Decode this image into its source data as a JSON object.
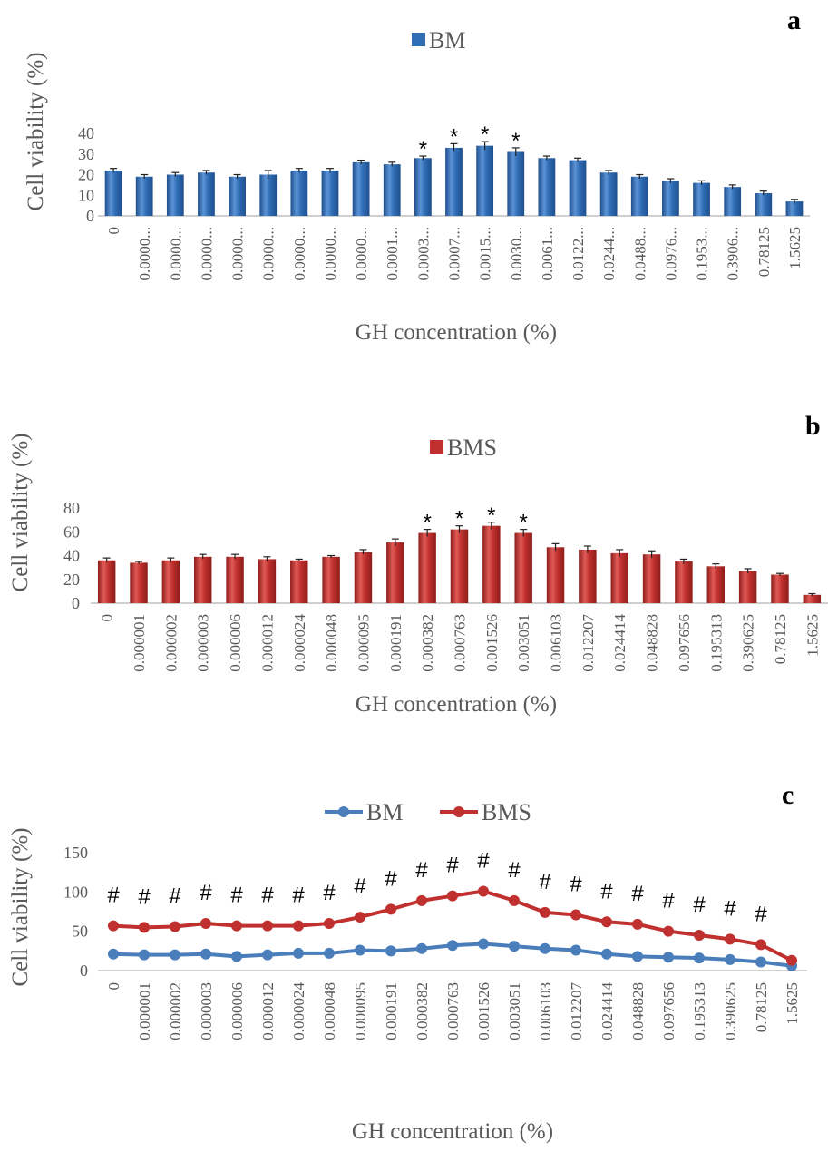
{
  "chart_data": [
    {
      "panel": "a",
      "type": "bar",
      "xlabel": "GH concentration  (%)",
      "ylabel": "Cell  viability   (%)",
      "ylim": [
        0,
        40
      ],
      "yticks": [
        0,
        10,
        20,
        30,
        40
      ],
      "legend": {
        "position": "top-center"
      },
      "color": "#2f6db5",
      "categories": [
        "0",
        "0.0000...",
        "0.0000...",
        "0.0000...",
        "0.0000...",
        "0.0000...",
        "0.0000...",
        "0.0000...",
        "0.0000...",
        "0.0001...",
        "0.0003...",
        "0.0007...",
        "0.0015...",
        "0.0030...",
        "0.0061...",
        "0.0122...",
        "0.0244...",
        "0.0488...",
        "0.0976...",
        "0.1953...",
        "0.3906...",
        "0.78125",
        "1.5625"
      ],
      "series": [
        {
          "name": "BM",
          "values": [
            22,
            19,
            20,
            21,
            19,
            20,
            22,
            22,
            26,
            25,
            28,
            33,
            34,
            31,
            28,
            27,
            21,
            19,
            17,
            16,
            14,
            11,
            7
          ],
          "errors": [
            1,
            1,
            1,
            1,
            1,
            2,
            1,
            1,
            1,
            1,
            1,
            2,
            2,
            2,
            1,
            1,
            1,
            1,
            1,
            1,
            1,
            1,
            1
          ]
        }
      ],
      "annotations": {
        "symbol": "*",
        "categories": [
          "0.0003...",
          "0.0007...",
          "0.0015...",
          "0.0030..."
        ]
      }
    },
    {
      "panel": "b",
      "type": "bar",
      "xlabel": "GH concentration  (%)",
      "ylabel": "Cell  viability   (%)",
      "ylim": [
        0,
        80
      ],
      "yticks": [
        0,
        20,
        40,
        60,
        80
      ],
      "legend": {
        "position": "top-center"
      },
      "color": "#c0302e",
      "categories": [
        "0",
        "0.000001",
        "0.000002",
        "0.000003",
        "0.000006",
        "0.000012",
        "0.000024",
        "0.000048",
        "0.000095",
        "0.000191",
        "0.000382",
        "0.000763",
        "0.001526",
        "0.003051",
        "0.006103",
        "0.012207",
        "0.024414",
        "0.048828",
        "0.097656",
        "0.195313",
        "0.390625",
        "0.78125",
        "1.5625"
      ],
      "series": [
        {
          "name": "BMS",
          "values": [
            36,
            34,
            36,
            39,
            39,
            37,
            36,
            39,
            43,
            51,
            59,
            62,
            65,
            59,
            47,
            45,
            42,
            41,
            35,
            31,
            27,
            24,
            7
          ],
          "errors": [
            2,
            1,
            2,
            2,
            2,
            2,
            1,
            1,
            2,
            3,
            3,
            3,
            3,
            3,
            3,
            3,
            3,
            3,
            2,
            2,
            2,
            1,
            1
          ]
        }
      ],
      "annotations": {
        "symbol": "*",
        "categories": [
          "0.000382",
          "0.000763",
          "0.001526",
          "0.003051"
        ]
      }
    },
    {
      "panel": "c",
      "type": "line",
      "xlabel": "GH concentration  (%)",
      "ylabel": "Cell  viability   (%)",
      "ylim": [
        0,
        150
      ],
      "yticks": [
        0,
        50,
        100,
        150
      ],
      "legend": {
        "position": "top-center"
      },
      "categories": [
        "0",
        "0.000001",
        "0.000002",
        "0.000003",
        "0.000006",
        "0.000012",
        "0.000024",
        "0.000048",
        "0.000095",
        "0.000191",
        "0.000382",
        "0.000763",
        "0.001526",
        "0.003051",
        "0.006103",
        "0.012207",
        "0.024414",
        "0.048828",
        "0.097656",
        "0.195313",
        "0.390625",
        "0.78125",
        "1.5625"
      ],
      "series": [
        {
          "name": "BM",
          "color": "#4a7ebb",
          "values": [
            21,
            20,
            20,
            21,
            18,
            20,
            22,
            22,
            26,
            25,
            28,
            32,
            34,
            31,
            28,
            26,
            21,
            18,
            17,
            16,
            14,
            11,
            6
          ]
        },
        {
          "name": "BMS",
          "color": "#c0302e",
          "values": [
            57,
            55,
            56,
            60,
            57,
            57,
            57,
            60,
            68,
            78,
            89,
            95,
            101,
            89,
            74,
            71,
            62,
            59,
            50,
            45,
            40,
            33,
            13
          ]
        }
      ],
      "annotations": {
        "symbol": "#",
        "categories": [
          "0",
          "0.000001",
          "0.000002",
          "0.000003",
          "0.000006",
          "0.000012",
          "0.000024",
          "0.000048",
          "0.000095",
          "0.000191",
          "0.000382",
          "0.000763",
          "0.001526",
          "0.003051",
          "0.006103",
          "0.012207",
          "0.024414",
          "0.048828",
          "0.097656",
          "0.195313",
          "0.390625",
          "0.78125"
        ]
      }
    }
  ]
}
